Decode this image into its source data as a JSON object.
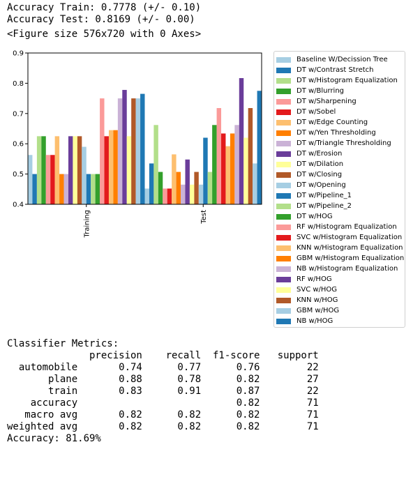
{
  "output_lines": {
    "train": "Accuracy Train: 0.7778 (+/- 0.10)",
    "test": "Accuracy Test: 0.8169 (+/- 0.00)",
    "figure": "<Figure size 576x720 with 0 Axes>"
  },
  "chart_data": {
    "type": "bar",
    "categories": [
      "Training",
      "Test"
    ],
    "ylim": [
      0.4,
      0.9
    ],
    "yticks": [
      "0.4",
      "0.5",
      "0.6",
      "0.7",
      "0.8",
      "0.9"
    ],
    "legend_position": "right",
    "series": [
      {
        "name": "Baseline W/Decission Tree",
        "color": "#a6cee3",
        "values": [
          0.563,
          0.452
        ]
      },
      {
        "name": "DT w/Contrast Stretch",
        "color": "#1f78b4",
        "values": [
          0.5,
          0.535
        ]
      },
      {
        "name": "DT w/Histogram Equalization",
        "color": "#b2df8a",
        "values": [
          0.625,
          0.662
        ]
      },
      {
        "name": "DT w/Blurring",
        "color": "#33a02c",
        "values": [
          0.625,
          0.507
        ]
      },
      {
        "name": "DT w/Sharpening",
        "color": "#fb9a99",
        "values": [
          0.563,
          0.452
        ]
      },
      {
        "name": "DT w/Sobel",
        "color": "#e31a1c",
        "values": [
          0.563,
          0.452
        ]
      },
      {
        "name": "DT w/Edge Counting",
        "color": "#fdbf6f",
        "values": [
          0.625,
          0.565
        ]
      },
      {
        "name": "DT w/Yen Thresholding",
        "color": "#ff7f00",
        "values": [
          0.5,
          0.507
        ]
      },
      {
        "name": "DT w/Triangle Thresholding",
        "color": "#cab2d6",
        "values": [
          0.5,
          0.465
        ]
      },
      {
        "name": "DT w/Erosion",
        "color": "#6a3d9a",
        "values": [
          0.625,
          0.548
        ]
      },
      {
        "name": "DT w/Dilation",
        "color": "#ffff99",
        "values": [
          0.625,
          0.465
        ]
      },
      {
        "name": "DT w/Closing",
        "color": "#b15928",
        "values": [
          0.625,
          0.507
        ]
      },
      {
        "name": "DT w/Opening",
        "color": "#a6cee3",
        "values": [
          0.59,
          0.465
        ]
      },
      {
        "name": "DT w/Pipeline_1",
        "color": "#1f78b4",
        "values": [
          0.5,
          0.62
        ]
      },
      {
        "name": "DT w/Pipeline_2",
        "color": "#b2df8a",
        "values": [
          0.5,
          0.507
        ]
      },
      {
        "name": "DT w/HOG",
        "color": "#33a02c",
        "values": [
          0.5,
          0.662
        ]
      },
      {
        "name": "RF w/Histogram Equalization",
        "color": "#fb9a99",
        "values": [
          0.75,
          0.718
        ]
      },
      {
        "name": "SVC w/Histogram Equalization",
        "color": "#e31a1c",
        "values": [
          0.625,
          0.634
        ]
      },
      {
        "name": "KNN w/Histogram Equalization",
        "color": "#fdbf6f",
        "values": [
          0.645,
          0.592
        ]
      },
      {
        "name": "GBM w/Histogram Equalization",
        "color": "#ff7f00",
        "values": [
          0.645,
          0.634
        ]
      },
      {
        "name": "NB w/Histogram Equalization",
        "color": "#cab2d6",
        "values": [
          0.75,
          0.662
        ]
      },
      {
        "name": "RF w/HOG",
        "color": "#6a3d9a",
        "values": [
          0.778,
          0.817
        ]
      },
      {
        "name": "SVC w/HOG",
        "color": "#ffff99",
        "values": [
          0.625,
          0.62
        ]
      },
      {
        "name": "KNN w/HOG",
        "color": "#b15928",
        "values": [
          0.75,
          0.718
        ]
      },
      {
        "name": "GBM w/HOG",
        "color": "#a6cee3",
        "values": [
          0.75,
          0.535
        ]
      },
      {
        "name": "NB w/HOG",
        "color": "#1f78b4",
        "values": [
          0.765,
          0.775
        ]
      }
    ]
  },
  "report": {
    "heading": "Classifier Metrics:",
    "columns": [
      "precision",
      "recall",
      "f1-score",
      "support"
    ],
    "rows": [
      {
        "label": "automobile",
        "precision": "0.74",
        "recall": "0.77",
        "f1": "0.76",
        "support": "22"
      },
      {
        "label": "plane",
        "precision": "0.88",
        "recall": "0.78",
        "f1": "0.82",
        "support": "27"
      },
      {
        "label": "train",
        "precision": "0.83",
        "recall": "0.91",
        "f1": "0.87",
        "support": "22"
      }
    ],
    "summary": [
      {
        "label": "accuracy",
        "precision": "",
        "recall": "",
        "f1": "0.82",
        "support": "71"
      },
      {
        "label": "macro avg",
        "precision": "0.82",
        "recall": "0.82",
        "f1": "0.82",
        "support": "71"
      },
      {
        "label": "weighted avg",
        "precision": "0.82",
        "recall": "0.82",
        "f1": "0.82",
        "support": "71"
      }
    ],
    "accuracy_line": "Accuracy: 81.69%"
  }
}
